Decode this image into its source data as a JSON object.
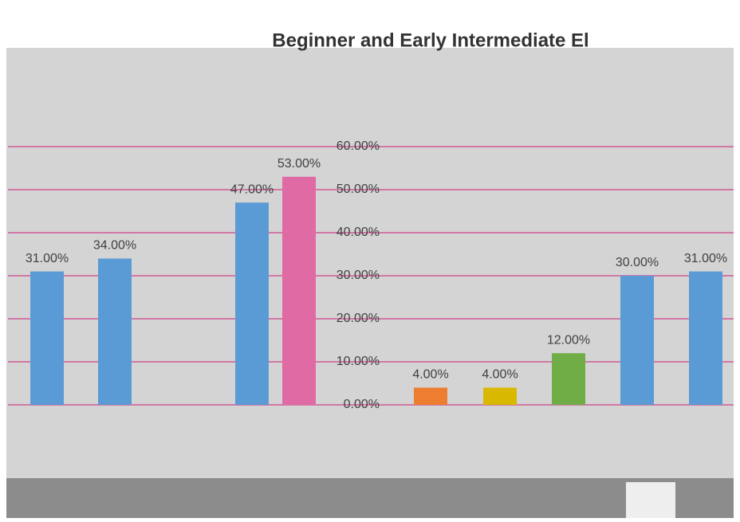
{
  "chart_data": {
    "type": "bar",
    "title": "Beginner and Early Intermediate El",
    "categories": [
      null,
      null,
      null,
      null,
      null,
      null,
      null,
      null,
      null
    ],
    "values": [
      31,
      34,
      47,
      53,
      4,
      4,
      12,
      30,
      31
    ],
    "value_labels": [
      "31.00%",
      "34.00%",
      "47.00%",
      "53.00%",
      "4.00%",
      "4.00%",
      "12.00%",
      "30.00%",
      "31.00%"
    ],
    "colors": [
      "#5b9bd5",
      "#5b9bd5",
      "#5b9bd5",
      "#e06aa3",
      "#ed7d31",
      "#d9b800",
      "#70ad47",
      "#5b9bd5",
      "#5b9bd5"
    ],
    "ylim": [
      0,
      60
    ],
    "yticks": [
      {
        "value": 0,
        "label": "0.00%"
      },
      {
        "value": 10,
        "label": "10.00%"
      },
      {
        "value": 20,
        "label": "20.00%"
      },
      {
        "value": 30,
        "label": "30.00%"
      },
      {
        "value": 40,
        "label": "40.00%"
      },
      {
        "value": 50,
        "label": "50.00%"
      },
      {
        "value": 60,
        "label": "60.00%"
      }
    ],
    "grid": true
  }
}
